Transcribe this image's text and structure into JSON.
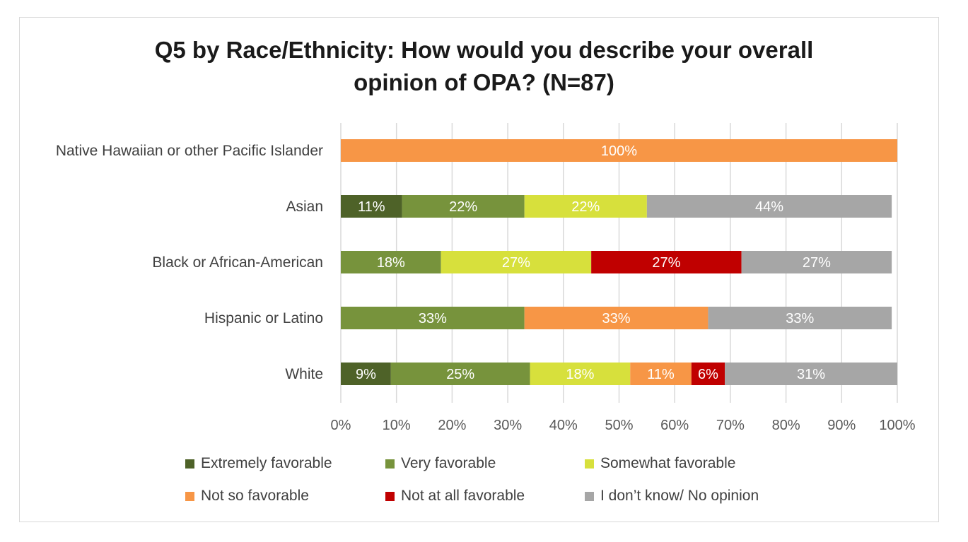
{
  "chart_data": {
    "type": "bar",
    "orientation": "horizontal",
    "stacked": "percent",
    "title": "Q5 by Race/Ethnicity: How would you describe your overall opinion of OPA? (N=87)",
    "title_lines": [
      "Q5 by Race/Ethnicity: How would you describe your overall",
      "opinion of OPA? (N=87)"
    ],
    "xlabel": "",
    "ylabel": "",
    "xlim": [
      0,
      100
    ],
    "x_ticks": [
      "0%",
      "10%",
      "20%",
      "30%",
      "40%",
      "50%",
      "60%",
      "70%",
      "80%",
      "90%",
      "100%"
    ],
    "grid": true,
    "legend_position": "bottom",
    "categories": [
      "Native Hawaiian or other Pacific Islander",
      "Asian",
      "Black or African-American",
      "Hispanic or Latino",
      "White"
    ],
    "series": [
      {
        "name": "Extremely favorable",
        "color": "#4e6228",
        "values": [
          0,
          11,
          0,
          0,
          9
        ],
        "labels": [
          "",
          "11%",
          "",
          "",
          "9%"
        ]
      },
      {
        "name": "Very favorable",
        "color": "#77933c",
        "values": [
          0,
          22,
          18,
          33,
          25
        ],
        "labels": [
          "",
          "22%",
          "18%",
          "33%",
          "25%"
        ]
      },
      {
        "name": "Somewhat favorable",
        "color": "#d7e03c",
        "values": [
          0,
          22,
          27,
          0,
          18
        ],
        "labels": [
          "",
          "22%",
          "27%",
          "",
          "18%"
        ]
      },
      {
        "name": "Not so favorable",
        "color": "#f79646",
        "values": [
          100,
          0,
          0,
          33,
          11
        ],
        "labels": [
          "100%",
          "",
          "",
          "33%",
          "11%"
        ]
      },
      {
        "name": "Not at all favorable",
        "color": "#c00000",
        "values": [
          0,
          0,
          27,
          0,
          6
        ],
        "labels": [
          "",
          "",
          "27%",
          "",
          "6%"
        ]
      },
      {
        "name": "I don’t know/ No opinion",
        "color": "#a6a6a6",
        "values": [
          0,
          44,
          27,
          33,
          31
        ],
        "labels": [
          "",
          "44%",
          "27%",
          "33%",
          "31%"
        ]
      }
    ]
  }
}
